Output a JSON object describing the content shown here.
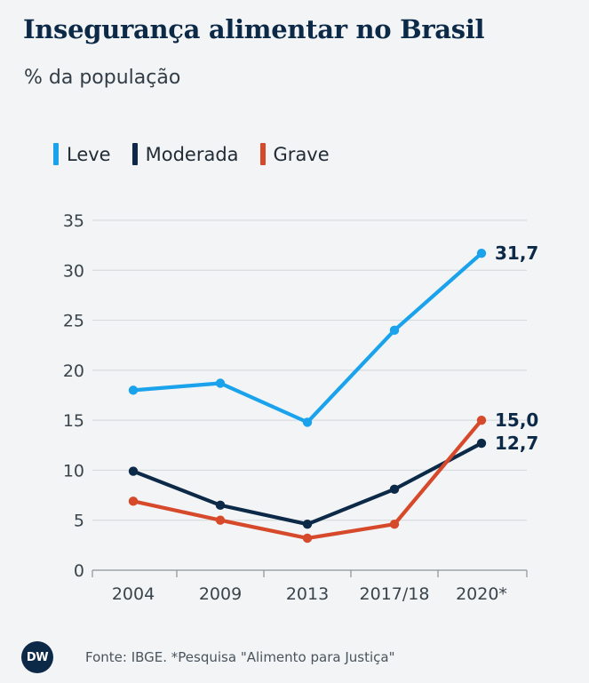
{
  "title": "Insegurança alimentar no Brasil",
  "subtitle": "% da população",
  "legend": [
    {
      "label": "Leve",
      "color": "#1aa3ec"
    },
    {
      "label": "Moderada",
      "color": "#0c2a48"
    },
    {
      "label": "Grave",
      "color": "#d6492b"
    }
  ],
  "chart_data": {
    "type": "line",
    "categories": [
      "2004",
      "2009",
      "2013",
      "2017/18",
      "2020*"
    ],
    "ylim": [
      0,
      35
    ],
    "yticks": [
      0,
      5,
      10,
      15,
      20,
      25,
      30,
      35
    ],
    "grid": true,
    "legend_position": "top-left",
    "series": [
      {
        "name": "Leve",
        "color": "#1aa3ec",
        "values": [
          18.0,
          18.7,
          14.8,
          24.0,
          31.7
        ],
        "end_label": "31,7"
      },
      {
        "name": "Moderada",
        "color": "#0c2a48",
        "values": [
          9.9,
          6.5,
          4.6,
          8.1,
          12.7
        ],
        "end_label": "12,7"
      },
      {
        "name": "Grave",
        "color": "#d6492b",
        "values": [
          6.9,
          5.0,
          3.2,
          4.6,
          15.0
        ],
        "end_label": "15,0"
      }
    ]
  },
  "footer": {
    "logo_text": "DW",
    "source": "Fonte: IBGE. *Pesquisa \"Alimento para Justiça\""
  }
}
